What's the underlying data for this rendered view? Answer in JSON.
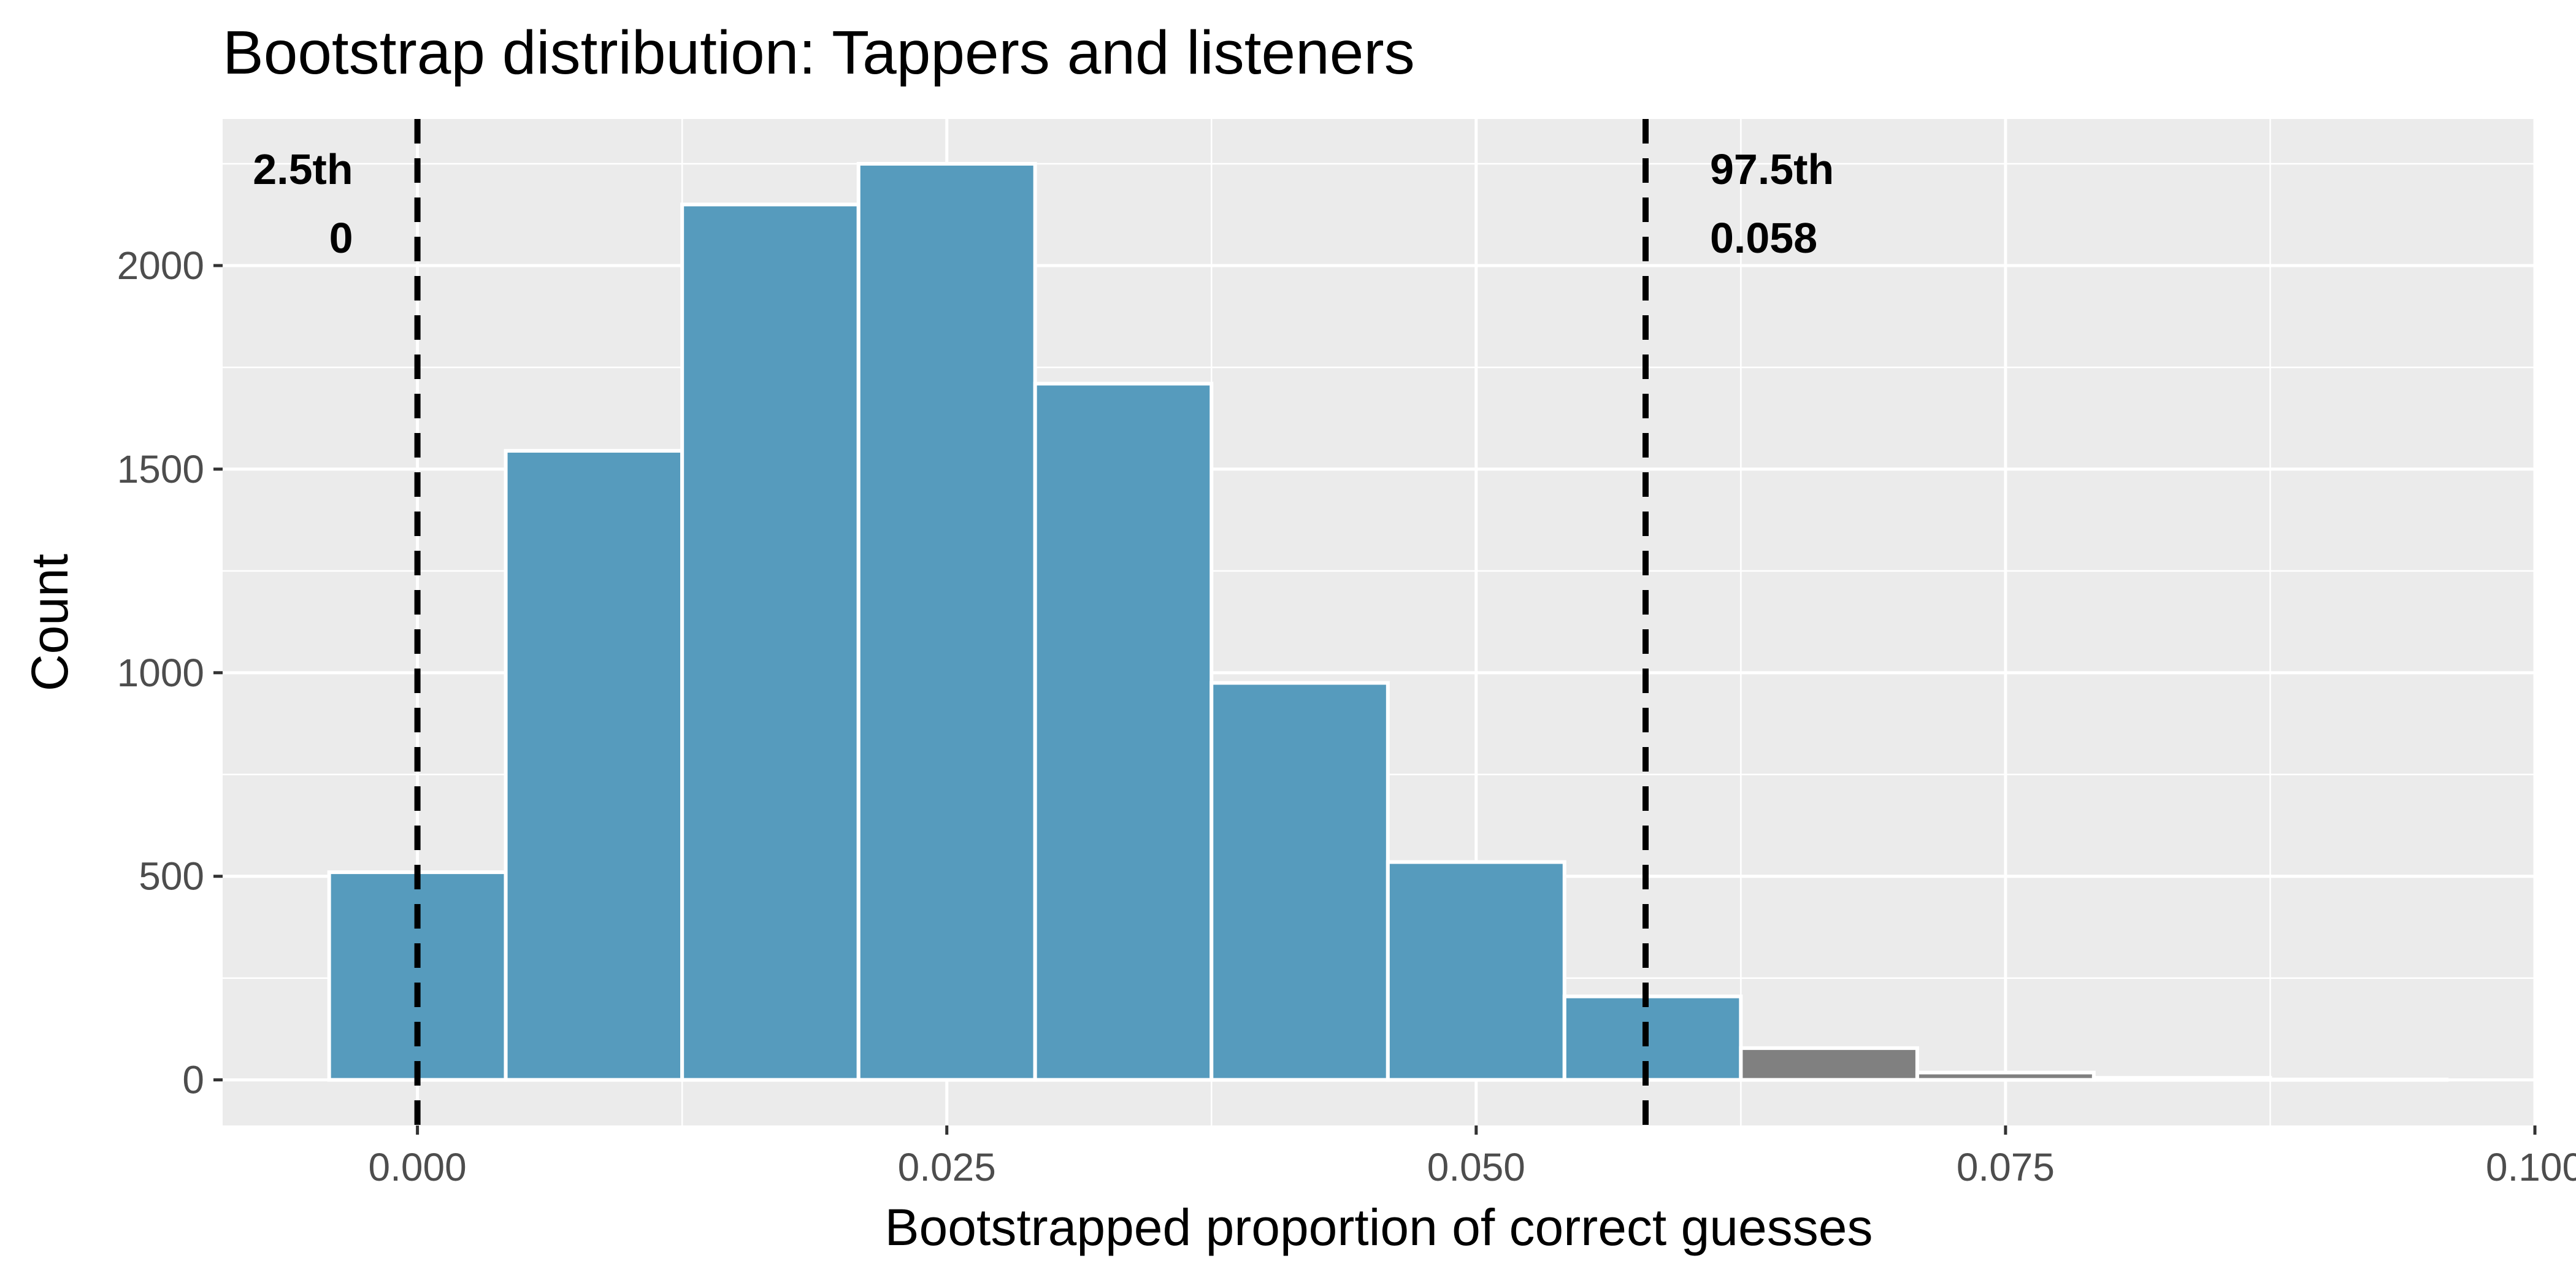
{
  "chart_data": {
    "type": "bar",
    "title": "Bootstrap distribution: Tappers and listeners",
    "xlabel": "Bootstrapped proportion of correct guesses",
    "ylabel": "Count",
    "xlim": [
      -0.0092,
      0.1
    ],
    "ylim": [
      -112,
      2360
    ],
    "x_ticks": [
      0.0,
      0.025,
      0.05,
      0.075,
      0.1
    ],
    "x_tick_labels": [
      "0.000",
      "0.025",
      "0.050",
      "0.075",
      "0.100"
    ],
    "y_ticks": [
      0,
      500,
      1000,
      1500,
      2000
    ],
    "y_tick_labels": [
      "0",
      "500",
      "1000",
      "1500",
      "2000"
    ],
    "grid": true,
    "bins": [
      {
        "x0": -0.00417,
        "x1": 0.00417,
        "count": 510,
        "in_interval": true
      },
      {
        "x0": 0.00417,
        "x1": 0.0125,
        "count": 1545,
        "in_interval": true
      },
      {
        "x0": 0.0125,
        "x1": 0.02083,
        "count": 2150,
        "in_interval": true
      },
      {
        "x0": 0.02083,
        "x1": 0.02917,
        "count": 2250,
        "in_interval": true
      },
      {
        "x0": 0.02917,
        "x1": 0.0375,
        "count": 1710,
        "in_interval": true
      },
      {
        "x0": 0.0375,
        "x1": 0.04583,
        "count": 975,
        "in_interval": true
      },
      {
        "x0": 0.04583,
        "x1": 0.05417,
        "count": 535,
        "in_interval": true
      },
      {
        "x0": 0.05417,
        "x1": 0.0625,
        "count": 205,
        "in_interval": true
      },
      {
        "x0": 0.0625,
        "x1": 0.07083,
        "count": 78,
        "in_interval": false
      },
      {
        "x0": 0.07083,
        "x1": 0.07917,
        "count": 18,
        "in_interval": false
      },
      {
        "x0": 0.07917,
        "x1": 0.0875,
        "count": 5,
        "in_interval": false
      },
      {
        "x0": 0.0875,
        "x1": 0.09583,
        "count": 1,
        "in_interval": false
      }
    ],
    "colors": {
      "in_interval": "#569bbd",
      "outside": "#808080",
      "panel": "#ebebeb",
      "grid": "#ffffff",
      "vline": "#000000"
    },
    "percentile_lines": [
      {
        "label": "2.5th",
        "value_label": "0",
        "x": 0.0
      },
      {
        "label": "97.5th",
        "value_label": "0.058",
        "x": 0.058
      }
    ]
  }
}
